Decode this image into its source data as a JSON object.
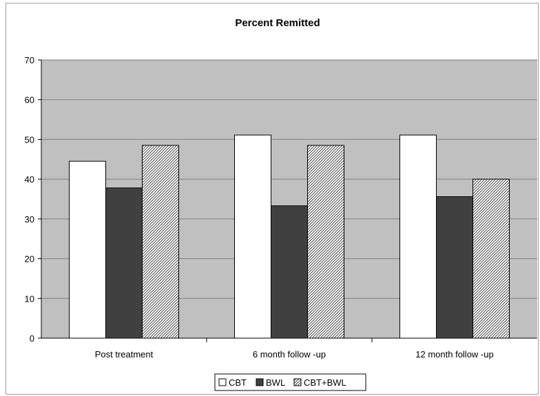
{
  "chart_data": {
    "type": "bar",
    "title": "Percent Remitted",
    "xlabel": "",
    "ylabel": "",
    "categories": [
      "Post treatment",
      "6 month follow -up",
      "12 month follow -up"
    ],
    "series": [
      {
        "name": "CBT",
        "values": [
          44.5,
          51.1,
          51.1
        ]
      },
      {
        "name": "BWL",
        "values": [
          37.8,
          33.3,
          35.6
        ]
      },
      {
        "name": "CBT+BWL",
        "values": [
          48.5,
          48.5,
          40.0
        ]
      }
    ],
    "ylim": [
      0,
      70
    ],
    "yticks": [
      0,
      10,
      20,
      30,
      40,
      50,
      60,
      70
    ],
    "grid": true,
    "legend_position": "bottom"
  },
  "colors": {
    "plot_background": "#c0c0c0",
    "gridline": "#808080",
    "CBT": "#ffffff",
    "BWL": "#404040",
    "CBT+BWL": "hatched"
  }
}
